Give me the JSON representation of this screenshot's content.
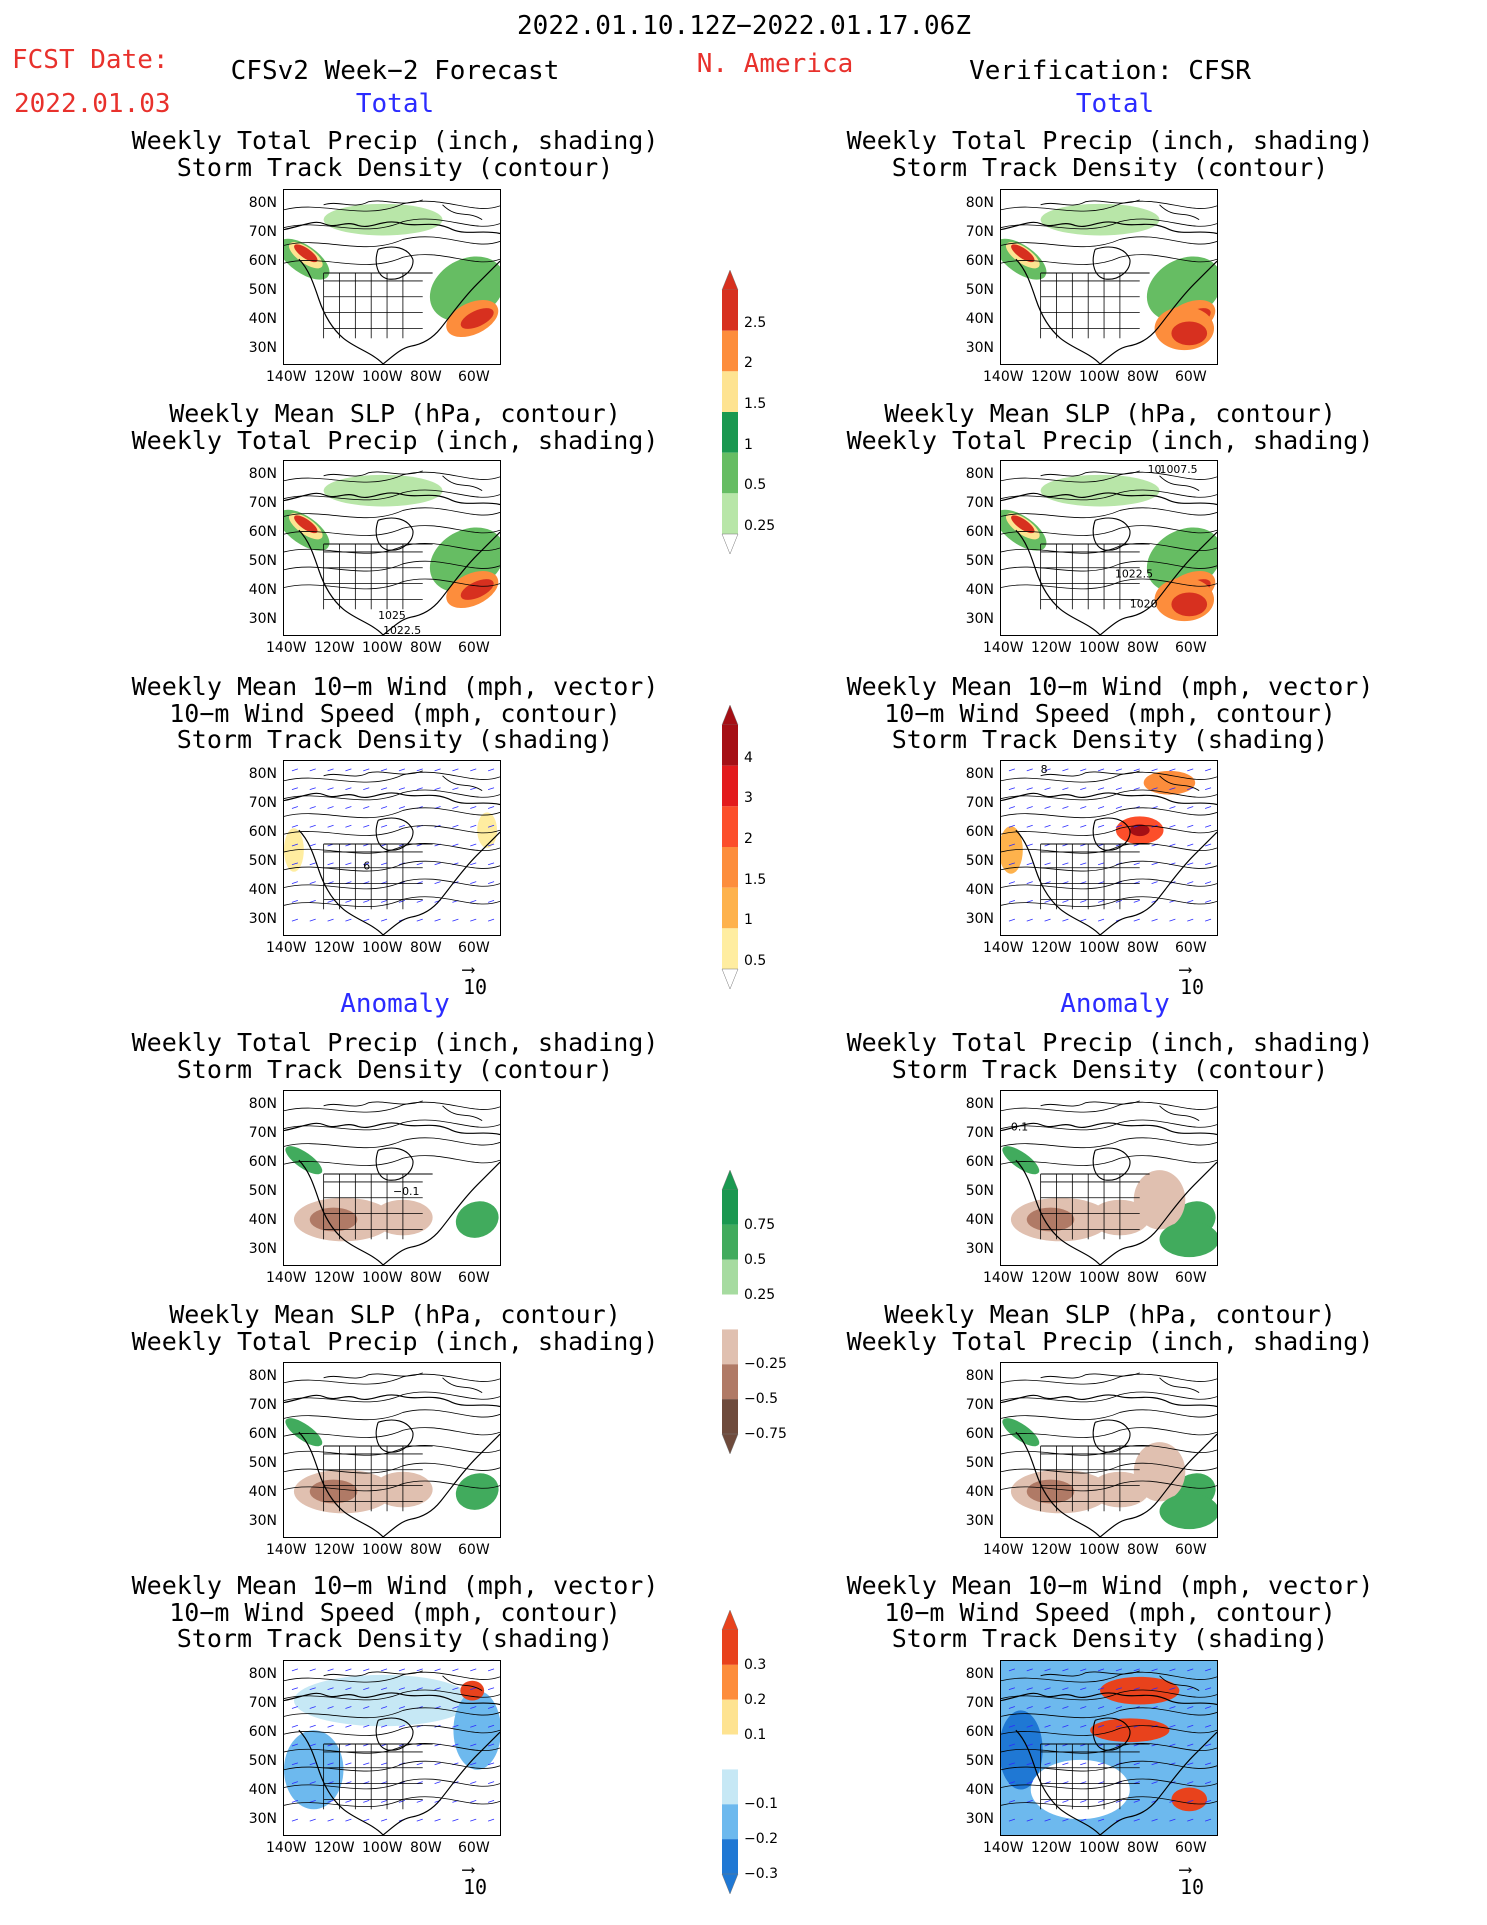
{
  "header": {
    "period": "2022.01.10.12Z−2022.01.17.06Z",
    "fcst_label": "FCST Date:",
    "fcst_date": "2022.01.03",
    "model": "CFSv2 Week−2 Forecast",
    "region": "N. America",
    "verification": "Verification: CFSR"
  },
  "sections": {
    "total": "Total",
    "anomaly": "Anomaly"
  },
  "titles": {
    "precip_storm": [
      "Weekly Total Precip (inch, shading)",
      "Storm Track Density (contour)"
    ],
    "slp_precip": [
      "Weekly Mean SLP (hPa, contour)",
      "Weekly Total Precip (inch, shading)"
    ],
    "wind_storm": [
      "Weekly Mean 10−m Wind (mph, vector)",
      "10−m Wind Speed (mph, contour)",
      "Storm Track Density (shading)"
    ]
  },
  "axes": {
    "lat_labels": [
      "80N",
      "70N",
      "60N",
      "50N",
      "40N",
      "30N"
    ],
    "lon_labels": [
      "140W",
      "120W",
      "100W",
      "80W",
      "60W"
    ]
  },
  "vector_ref": "10",
  "contour_labels": {
    "fc_slp": [
      "1025",
      "1022.5"
    ],
    "obs_slp": [
      "1007.5",
      "1022.5",
      "1020",
      "10"
    ],
    "fc_anom_precip": "−0.1",
    "obs_anom_precip": "0.1",
    "fc_wind": "6",
    "obs_wind": "8"
  },
  "colorbars": [
    {
      "id": "total-precip",
      "labels": [
        "2.5",
        "2",
        "1.5",
        "1",
        "0.5",
        "0.25"
      ],
      "colors": [
        "#d7301f",
        "#fd8d3c",
        "#fee391",
        "#1a9850",
        "#66bd63",
        "#b8e6a8"
      ]
    },
    {
      "id": "storm-density",
      "labels": [
        "4",
        "3",
        "2",
        "1.5",
        "1",
        "0.5"
      ],
      "colors": [
        "#a50f15",
        "#e31a1c",
        "#fc4e2a",
        "#fd8d3c",
        "#feb24c",
        "#ffeda0"
      ]
    },
    {
      "id": "precip-anom",
      "labels": [
        "0.75",
        "0.5",
        "0.25",
        "−0.25",
        "−0.5",
        "−0.75"
      ],
      "colors": [
        "#1a9850",
        "#41ab5d",
        "#a6dba0",
        "#ffffff",
        "#e0c0b0",
        "#b07a66",
        "#6e4a3c"
      ]
    },
    {
      "id": "storm-anom",
      "labels": [
        "0.3",
        "0.2",
        "0.1",
        "−0.1",
        "−0.2",
        "−0.3"
      ],
      "colors": [
        "#e8421c",
        "#fd8d3c",
        "#fee391",
        "#ffffff",
        "#c6e8f5",
        "#6db9ee",
        "#1f78d4"
      ]
    }
  ]
}
